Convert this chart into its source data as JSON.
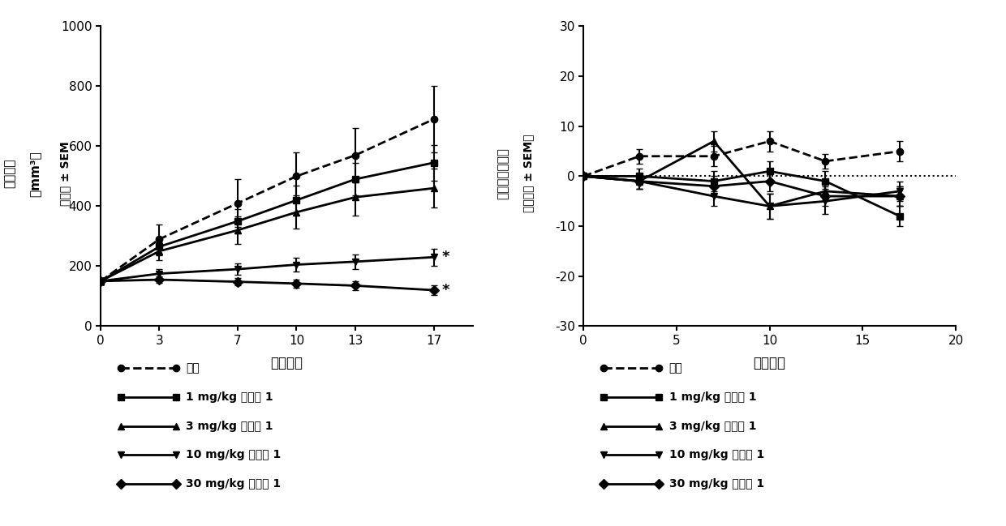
{
  "left_chart": {
    "xlabel": "治疗天数",
    "ylabel_line1": "肿瘤体积",
    "ylabel_line2": "（mm³）",
    "ylabel_line3": "平均值 ± SEM",
    "xlim": [
      0,
      19
    ],
    "ylim": [
      0,
      1000
    ],
    "xticks": [
      0,
      3,
      7,
      10,
      13,
      17
    ],
    "yticks": [
      0,
      200,
      400,
      600,
      800,
      1000
    ],
    "series": [
      {
        "label": "对照",
        "x": [
          0,
          3,
          7,
          10,
          13,
          17
        ],
        "y": [
          150,
          290,
          410,
          500,
          570,
          690
        ],
        "yerr": [
          10,
          50,
          80,
          80,
          90,
          110
        ],
        "linestyle": "--",
        "marker": "o",
        "significant": false
      },
      {
        "label": "1 mg/kg 化合物 1",
        "x": [
          0,
          3,
          7,
          10,
          13,
          17
        ],
        "y": [
          150,
          265,
          350,
          420,
          490,
          545
        ],
        "yerr": [
          10,
          30,
          40,
          50,
          55,
          60
        ],
        "linestyle": "-",
        "marker": "s",
        "significant": false
      },
      {
        "label": "3 mg/kg 化合物 1",
        "x": [
          0,
          3,
          7,
          10,
          13,
          17
        ],
        "y": [
          150,
          250,
          320,
          380,
          430,
          460
        ],
        "yerr": [
          10,
          30,
          45,
          55,
          60,
          65
        ],
        "linestyle": "-",
        "marker": "^",
        "significant": false
      },
      {
        "label": "10 mg/kg 化合物 1",
        "x": [
          0,
          3,
          7,
          10,
          13,
          17
        ],
        "y": [
          150,
          175,
          190,
          205,
          215,
          230
        ],
        "yerr": [
          10,
          15,
          20,
          22,
          25,
          28
        ],
        "linestyle": "-",
        "marker": "v",
        "significant": true
      },
      {
        "label": "30 mg/kg 化合物 1",
        "x": [
          0,
          3,
          7,
          10,
          13,
          17
        ],
        "y": [
          150,
          155,
          148,
          142,
          135,
          120
        ],
        "yerr": [
          10,
          12,
          12,
          14,
          15,
          16
        ],
        "linestyle": "-",
        "marker": "D",
        "significant": true
      }
    ]
  },
  "right_chart": {
    "xlabel": "治疗天数",
    "ylabel_line1": "体重变化百分比",
    "ylabel_line2": "（平均值 ± SEM）",
    "xlim": [
      0,
      20
    ],
    "ylim": [
      -30,
      30
    ],
    "xticks": [
      0,
      5,
      10,
      15,
      20
    ],
    "yticks": [
      -30,
      -20,
      -10,
      0,
      10,
      20,
      30
    ],
    "series": [
      {
        "label": "对照",
        "x": [
          0,
          3,
          7,
          10,
          13,
          17
        ],
        "y": [
          0,
          4,
          4,
          7,
          3,
          5
        ],
        "yerr": [
          0,
          1.5,
          2,
          2,
          1.5,
          2
        ],
        "linestyle": "--",
        "marker": "o"
      },
      {
        "label": "1 mg/kg 化合物 1",
        "x": [
          0,
          3,
          7,
          10,
          13,
          17
        ],
        "y": [
          0,
          0,
          -1,
          1,
          -1,
          -8
        ],
        "yerr": [
          0,
          1.5,
          2,
          2,
          2,
          2
        ],
        "linestyle": "-",
        "marker": "s"
      },
      {
        "label": "3 mg/kg 化合物 1",
        "x": [
          0,
          3,
          7,
          10,
          13,
          17
        ],
        "y": [
          0,
          -1,
          7,
          -6,
          -3,
          -4
        ],
        "yerr": [
          0,
          1.5,
          2,
          2.5,
          2,
          2
        ],
        "linestyle": "-",
        "marker": "^"
      },
      {
        "label": "10 mg/kg 化合物 1",
        "x": [
          0,
          3,
          7,
          10,
          13,
          17
        ],
        "y": [
          0,
          -1,
          -4,
          -6,
          -5,
          -3
        ],
        "yerr": [
          0,
          1.5,
          2,
          2.5,
          2.5,
          2
        ],
        "linestyle": "-",
        "marker": "v"
      },
      {
        "label": "30 mg/kg 化合物 1",
        "x": [
          0,
          3,
          7,
          10,
          13,
          17
        ],
        "y": [
          0,
          -1,
          -2,
          -1,
          -4,
          -4
        ],
        "yerr": [
          0,
          1.5,
          2,
          2,
          2,
          2
        ],
        "linestyle": "-",
        "marker": "D"
      }
    ]
  },
  "legend_entries": [
    {
      "label": "对照",
      "linestyle": "--",
      "marker": "o"
    },
    {
      "label": "1 mg/kg 化合物 1",
      "linestyle": "-",
      "marker": "s"
    },
    {
      "label": "3 mg/kg 化合物 1",
      "linestyle": "-",
      "marker": "^"
    },
    {
      "label": "10 mg/kg 化合物 1",
      "linestyle": "-",
      "marker": "v"
    },
    {
      "label": "30 mg/kg 化合物 1",
      "linestyle": "-",
      "marker": "D"
    }
  ],
  "background_color": "#ffffff",
  "line_color": "#000000",
  "fontsize": 10,
  "marker_size": 6
}
